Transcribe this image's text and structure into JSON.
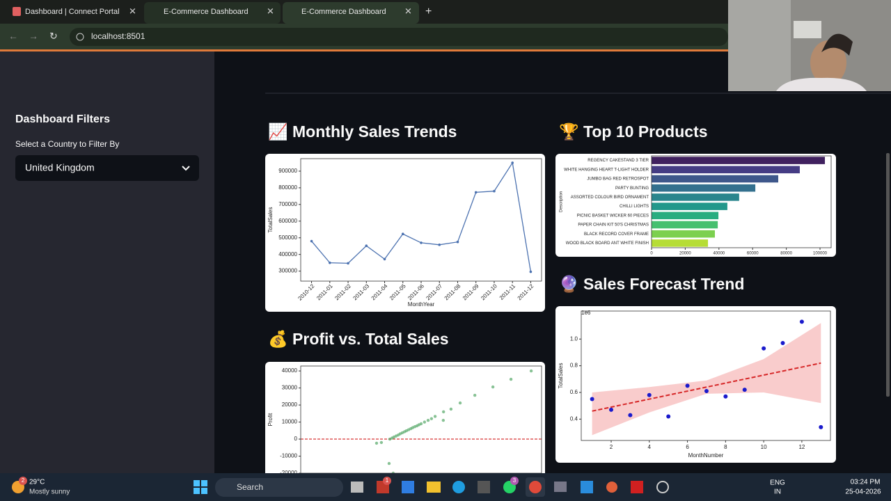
{
  "browser": {
    "tabs": [
      "Dashboard | Connect Portal",
      "E-Commerce Dashboard",
      "E-Commerce Dashboard"
    ],
    "url": "localhost:8501"
  },
  "sidebar": {
    "title": "Dashboard Filters",
    "filter_label": "Select a Country to Filter By",
    "filter_value": "United Kingdom"
  },
  "charts": [
    {
      "type": "line",
      "title": "📈 Monthly Sales Trends",
      "x_label": "MonthYear",
      "y_label": "TotalSales",
      "color": "#4c72b0",
      "categories": [
        "2010-12",
        "2011-01",
        "2011-02",
        "2011-03",
        "2011-04",
        "2011-05",
        "2011-06",
        "2011-07",
        "2011-08",
        "2011-09",
        "2011-10",
        "2011-11",
        "2011-12"
      ],
      "values": [
        480000,
        350000,
        347000,
        452000,
        372000,
        523000,
        470000,
        458000,
        475000,
        773000,
        780000,
        950000,
        296000
      ],
      "ylim": [
        240000,
        975000
      ],
      "yticks": [
        300000,
        400000,
        500000,
        600000,
        700000,
        800000,
        900000
      ]
    },
    {
      "type": "bar",
      "orientation": "horizontal",
      "title": "🏆 Top 10 Products",
      "y_label": "Description",
      "categories": [
        "REGENCY CAKESTAND 3 TIER",
        "WHITE HANGING HEART T-LIGHT HOLDER",
        "JUMBO BAG RED RETROSPOT",
        "PARTY BUNTING",
        "ASSORTED COLOUR BIRD ORNAMENT",
        "CHILLI LIGHTS",
        "PICNIC BASKET WICKER 60 PIECES",
        "PAPER CHAIN KIT 50'S CHRISTMAS",
        "BLACK RECORD COVER FRAME",
        "WOOD BLACK BOARD ANT WHITE FINISH"
      ],
      "values": [
        102900,
        88000,
        75200,
        61600,
        52000,
        45000,
        39700,
        39300,
        37600,
        33500
      ],
      "colors": [
        "#40215f",
        "#453c84",
        "#3e578b",
        "#33708e",
        "#2a858d",
        "#22988b",
        "#28ad80",
        "#46c06f",
        "#7cd04f",
        "#b6dd36"
      ],
      "xlim": [
        0,
        106600
      ],
      "xticks": [
        0,
        20000,
        40000,
        60000,
        80000,
        100000
      ]
    },
    {
      "type": "scatter",
      "title": "💰 Profit vs. Total Sales",
      "y_label": "Profit",
      "color": "#55a868",
      "x": [
        95.7,
        87.3,
        79.8,
        72.3,
        66.2,
        62.4,
        59.3,
        59.2,
        55.8,
        54.3,
        52.9,
        51.4,
        50.0,
        49.1,
        48.3,
        47.4,
        46.5,
        45.7,
        44.8,
        43.9,
        43.1,
        42.2,
        41.3,
        40.5,
        39.6,
        38.7,
        37.9,
        37.0,
        31.5,
        33.5,
        36.7,
        38.4
      ],
      "values": [
        40000,
        35100,
        30600,
        25700,
        21200,
        17600,
        16000,
        11000,
        13300,
        12000,
        11000,
        10000,
        9000,
        8400,
        7800,
        7300,
        6700,
        6100,
        5500,
        4900,
        4300,
        3700,
        3100,
        2400,
        1800,
        1200,
        600,
        0,
        -2400,
        -2000,
        -14300,
        -20000
      ],
      "xlim": [
        0,
        100
      ],
      "ylim": [
        -20000,
        42900
      ],
      "yticks": [
        -20000,
        -10000,
        0,
        10000,
        20000,
        30000,
        40000
      ],
      "reference_line": {
        "value": 0,
        "color": "#cc0000"
      }
    },
    {
      "type": "scatter",
      "title": "🔮 Sales Forecast Trend",
      "x_label": "MonthNumber",
      "y_label": "TotalSales",
      "y_offset_label": "1e6",
      "color": "#1a1acc",
      "x": [
        1,
        2,
        3,
        4,
        5,
        6,
        7,
        8,
        9,
        10,
        11,
        12,
        13
      ],
      "values": [
        0.55,
        0.47,
        0.43,
        0.58,
        0.42,
        0.65,
        0.61,
        0.57,
        0.62,
        0.93,
        0.97,
        1.13,
        0.34
      ],
      "xlim": [
        0.43,
        13.5
      ],
      "ylim": [
        0.24,
        1.21
      ],
      "xticks": [
        2,
        4,
        6,
        8,
        10,
        12
      ],
      "yticks": [
        0.4,
        0.6,
        0.8,
        {
          "value": 1.0,
          "label": "1.0"
        }
      ],
      "trend": {
        "x": [
          1,
          13
        ],
        "values": [
          0.46,
          0.82
        ],
        "color": "#d62728"
      },
      "band": {
        "x": [
          1,
          4,
          7,
          10,
          13
        ],
        "upper": [
          0.6,
          0.64,
          0.69,
          0.85,
          1.12
        ],
        "lower": [
          0.28,
          0.45,
          0.59,
          0.6,
          0.52
        ],
        "color": "#f7b6b6"
      }
    }
  ],
  "taskbar": {
    "temperature": "29°C",
    "weather": "Mostly sunny",
    "search": "Search",
    "lang": "ENG",
    "region": "IN",
    "time": "03:24 PM",
    "date": "25-04-2026",
    "badges": [
      "2",
      "1",
      "3"
    ]
  }
}
